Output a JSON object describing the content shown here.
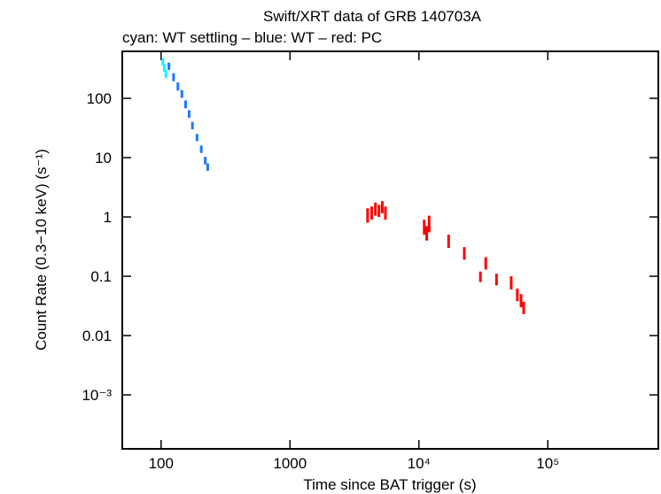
{
  "chart_data": {
    "type": "scatter",
    "title": "Swift/XRT data of GRB 140703A",
    "subtitle": "cyan: WT settling – blue: WT – red: PC",
    "x_label": "Time since BAT trigger (s)",
    "y_label": "Count Rate (0.3−10 keV) (s⁻¹)",
    "x_log": true,
    "y_log": true,
    "xlim": [
      50,
      720000
    ],
    "ylim": [
      0.000123,
      620
    ],
    "xticks": [
      100,
      1000,
      {
        "value": 10000,
        "label": "10⁴"
      },
      {
        "value": 100000,
        "label": "10⁵"
      }
    ],
    "yticks": [
      100,
      10,
      1,
      0.1,
      0.01,
      {
        "value": 0.001,
        "label": "10⁻³"
      }
    ],
    "series": [
      {
        "color": "#00ffff",
        "x": [
          103,
          106,
          109
        ],
        "values": [
          420,
          330,
          260
        ],
        "errors": [
          60,
          50,
          40
        ]
      },
      {
        "color": "#1e78ff",
        "x": [
          115,
          125,
          135,
          145,
          155,
          165,
          175,
          190,
          205,
          220,
          230
        ],
        "values": [
          350,
          230,
          160,
          120,
          80,
          55,
          35,
          22,
          14,
          9,
          7
        ],
        "errors": [
          50,
          35,
          25,
          18,
          12,
          8,
          5,
          3,
          2,
          1.3,
          1
        ]
      },
      {
        "color": "#ff0000",
        "x": [
          4000,
          4300,
          4600,
          4900,
          5200,
          5500,
          11000,
          11500,
          12000,
          17000,
          22500,
          30000,
          33000,
          40000,
          52000,
          58000,
          62000,
          65000
        ],
        "values": [
          1.1,
          1.2,
          1.4,
          1.3,
          1.5,
          1.2,
          0.7,
          0.55,
          0.8,
          0.4,
          0.25,
          0.1,
          0.17,
          0.09,
          0.08,
          0.05,
          0.04,
          0.03
        ],
        "errors": [
          0.3,
          0.3,
          0.35,
          0.3,
          0.35,
          0.3,
          0.2,
          0.15,
          0.25,
          0.1,
          0.06,
          0.02,
          0.04,
          0.02,
          0.02,
          0.012,
          0.01,
          0.007
        ]
      }
    ]
  }
}
